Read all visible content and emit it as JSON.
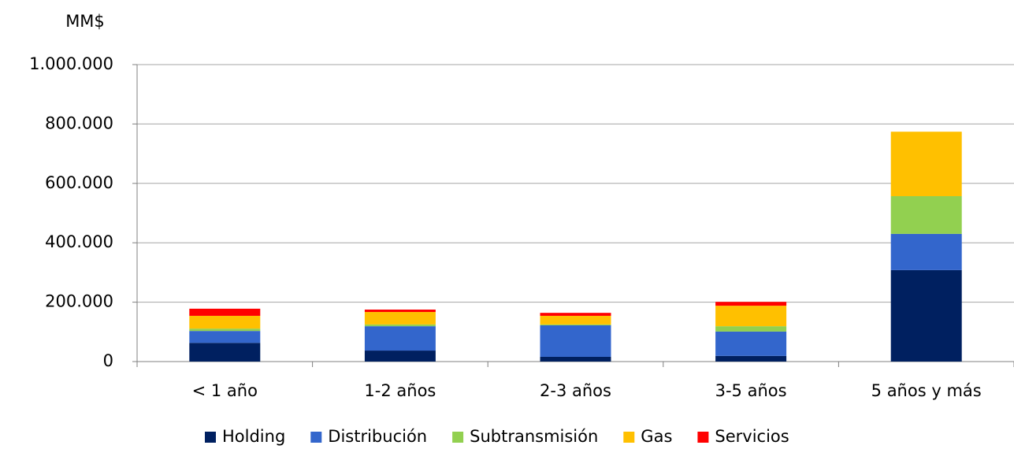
{
  "chart_data": {
    "type": "stacked_bar",
    "y_axis_label": "MM$",
    "categories": [
      "< 1 año",
      "1-2 años",
      "2-3 años",
      "3-5 años",
      "5 años y más"
    ],
    "series": [
      {
        "name": "Holding",
        "color": "#002060",
        "values": [
          63000,
          37000,
          16000,
          19000,
          308000
        ]
      },
      {
        "name": "Distribución",
        "color": "#3366cc",
        "values": [
          40000,
          82000,
          106000,
          82000,
          122000
        ]
      },
      {
        "name": "Subtransmisión",
        "color": "#92d050",
        "values": [
          8000,
          6000,
          3000,
          18000,
          127000
        ]
      },
      {
        "name": "Gas",
        "color": "#ffc000",
        "values": [
          43000,
          42000,
          29000,
          69000,
          217000
        ]
      },
      {
        "name": "Servicios",
        "color": "#ff0000",
        "values": [
          24000,
          8000,
          10000,
          13000,
          0
        ]
      }
    ],
    "ylim": [
      0,
      1000000
    ],
    "yticks": [
      0,
      {
        "value": 200000,
        "label": "200.000"
      },
      {
        "value": 400000,
        "label": "400.000"
      },
      {
        "value": 600000,
        "label": "600.000"
      },
      {
        "value": 800000,
        "label": "800.000"
      },
      {
        "value": 1000000,
        "label": "1.000.000"
      }
    ],
    "grid": true,
    "legend": "bottom"
  }
}
